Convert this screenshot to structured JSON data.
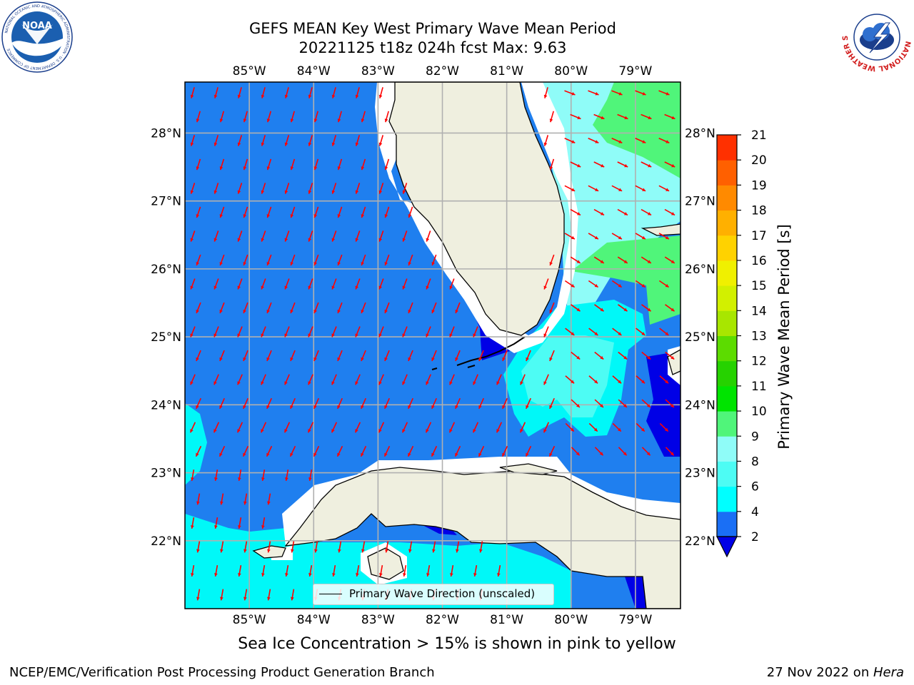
{
  "header": {
    "title_line1": "GEFS MEAN Key West Primary Wave Mean Period",
    "title_line2": "20221125 t18z 024h fcst   Max: 9.63"
  },
  "logos": {
    "left": {
      "name": "noaa-logo",
      "text": "NOAA",
      "ring_text": "NATIONAL OCEANIC AND ATMOSPHERIC ADMINISTRATION · U.S. DEPARTMENT OF COMMERCE"
    },
    "right": {
      "name": "nws-logo",
      "ring_text": "NATIONAL WEATHER SERVICE"
    }
  },
  "map": {
    "lon_ticks": [
      "85°W",
      "84°W",
      "83°W",
      "82°W",
      "81°W",
      "80°W",
      "79°W"
    ],
    "lat_ticks": [
      "28°N",
      "27°N",
      "26°N",
      "25°N",
      "24°N",
      "23°N",
      "22°N"
    ],
    "lon_range": [
      -86.0,
      -78.3
    ],
    "lat_range": [
      21.0,
      28.75
    ],
    "legend_label": "Primary Wave Direction (unscaled)",
    "arrow_color": "#ff0000",
    "land_color": "#efefdf",
    "ocean_base_color": "#1f7fef"
  },
  "colorbar": {
    "label": "Primary Wave Mean Period [s]",
    "ticks": [
      "2",
      "4",
      "6",
      "8",
      "9",
      "10",
      "11",
      "12",
      "13",
      "14",
      "15",
      "16",
      "17",
      "18",
      "19",
      "20",
      "21"
    ],
    "colors": [
      "#1a6ff5",
      "#00ffff",
      "#4dfcf4",
      "#8ffcf8",
      "#50f57a",
      "#00e400",
      "#26d200",
      "#5cdc00",
      "#a8e600",
      "#d2f000",
      "#f0f000",
      "#ffd200",
      "#ffb000",
      "#ff8a00",
      "#ff6000",
      "#ff3000",
      "#ff0000"
    ],
    "under_color": "#0000e6"
  },
  "notes": {
    "sea_ice": "Sea Ice Concentration > 15% is shown in pink to yellow",
    "credit": "NCEP/EMC/Verification Post Processing Product Generation Branch",
    "date_prefix": "27 Nov 2022 on ",
    "machine": "Hera"
  }
}
